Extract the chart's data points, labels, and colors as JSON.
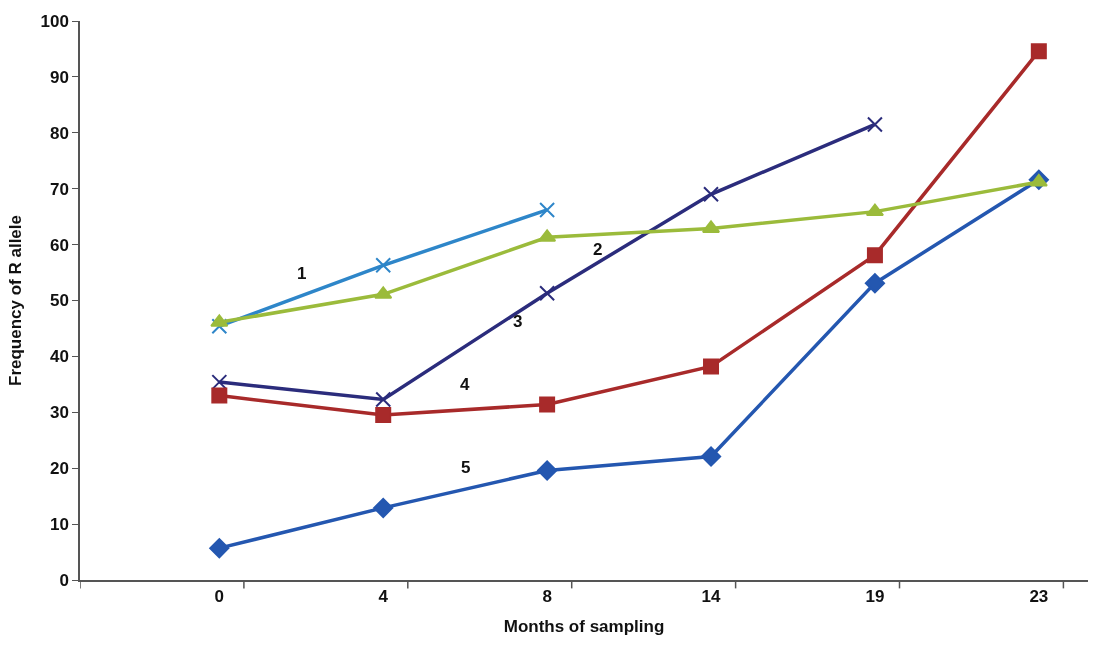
{
  "chart_data": {
    "type": "line",
    "xlabel": "Months of sampling",
    "ylabel": "Frequency of R allele",
    "categories": [
      "0",
      "4",
      "8",
      "14",
      "19",
      "23"
    ],
    "ylim": [
      0,
      100
    ],
    "yticks": [
      0,
      10,
      20,
      30,
      40,
      50,
      60,
      70,
      80,
      90,
      100
    ],
    "legend": false,
    "line_style": "solid",
    "series": [
      {
        "name": "1",
        "color": "#2e86c9",
        "marker": "cross",
        "values": [
          45.4,
          56.3,
          66.2,
          null,
          null,
          null
        ]
      },
      {
        "name": "2",
        "color": "#9bbb3b",
        "marker": "triangle",
        "values": [
          46.1,
          51.1,
          61.3,
          62.9,
          65.9,
          71.2
        ]
      },
      {
        "name": "3",
        "color": "#2b2c7c",
        "marker": "cross",
        "values": [
          35.4,
          32.3,
          51.3,
          69.0,
          81.5,
          null
        ]
      },
      {
        "name": "4",
        "color": "#a82a2a",
        "marker": "square",
        "values": [
          33.0,
          29.5,
          31.4,
          38.2,
          58.1,
          94.6
        ]
      },
      {
        "name": "5",
        "color": "#2457b0",
        "marker": "diamond",
        "values": [
          5.7,
          12.9,
          19.6,
          22.1,
          53.1,
          71.6
        ]
      }
    ]
  }
}
